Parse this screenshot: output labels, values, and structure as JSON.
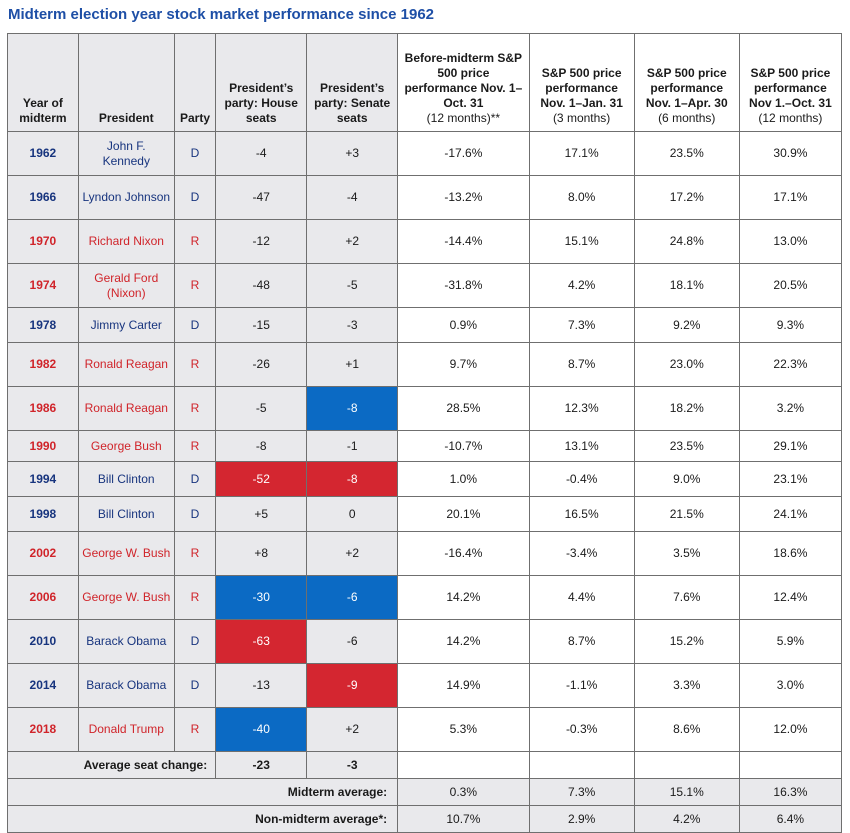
{
  "title": "Midterm election year stock market performance since 1962",
  "headers": {
    "year": "Year of midterm",
    "president": "President",
    "party": "Party",
    "house": "President’s party: House seats",
    "senate": "President’s party: Senate seats",
    "before_main": "Before-midterm S&P 500 price performance Nov. 1–Oct. 31",
    "before_sub": "(12 months)**",
    "m3_main": "S&P 500 price performance Nov. 1–Jan. 31",
    "m3_sub": "(3 months)",
    "m6_main": "S&P 500 price performance Nov. 1–Apr. 30",
    "m6_sub": "(6 months)",
    "m12_main": "S&P 500 price performance Nov 1.–Oct. 31",
    "m12_sub": "(12 months)"
  },
  "rows": [
    {
      "year": "1962",
      "president": "John F. Kennedy",
      "party": "D",
      "house": "-4",
      "senate": "+3",
      "before": "-17.6%",
      "m3": "17.1%",
      "m6": "23.5%",
      "m12": "30.9%"
    },
    {
      "year": "1966",
      "president": "Lyndon Johnson",
      "party": "D",
      "house": "-47",
      "senate": "-4",
      "before": "-13.2%",
      "m3": "8.0%",
      "m6": "17.2%",
      "m12": "17.1%"
    },
    {
      "year": "1970",
      "president": "Richard Nixon",
      "party": "R",
      "house": "-12",
      "senate": "+2",
      "before": "-14.4%",
      "m3": "15.1%",
      "m6": "24.8%",
      "m12": "13.0%"
    },
    {
      "year": "1974",
      "president": "Gerald Ford (Nixon)",
      "party": "R",
      "house": "-48",
      "senate": "-5",
      "before": "-31.8%",
      "m3": "4.2%",
      "m6": "18.1%",
      "m12": "20.5%"
    },
    {
      "year": "1978",
      "president": "Jimmy Carter",
      "party": "D",
      "house": "-15",
      "senate": "-3",
      "before": "0.9%",
      "m3": "7.3%",
      "m6": "9.2%",
      "m12": "9.3%"
    },
    {
      "year": "1982",
      "president": "Ronald Reagan",
      "party": "R",
      "house": "-26",
      "senate": "+1",
      "before": "9.7%",
      "m3": "8.7%",
      "m6": "23.0%",
      "m12": "22.3%"
    },
    {
      "year": "1986",
      "president": "Ronald Reagan",
      "party": "R",
      "house": "-5",
      "senate": "-8",
      "before": "28.5%",
      "m3": "12.3%",
      "m6": "18.2%",
      "m12": "3.2%"
    },
    {
      "year": "1990",
      "president": "George Bush",
      "party": "R",
      "house": "-8",
      "senate": "-1",
      "before": "-10.7%",
      "m3": "13.1%",
      "m6": "23.5%",
      "m12": "29.1%"
    },
    {
      "year": "1994",
      "president": "Bill Clinton",
      "party": "D",
      "house": "-52",
      "senate": "-8",
      "before": "1.0%",
      "m3": "-0.4%",
      "m6": "9.0%",
      "m12": "23.1%"
    },
    {
      "year": "1998",
      "president": "Bill Clinton",
      "party": "D",
      "house": "+5",
      "senate": "0",
      "before": "20.1%",
      "m3": "16.5%",
      "m6": "21.5%",
      "m12": "24.1%"
    },
    {
      "year": "2002",
      "president": "George W. Bush",
      "party": "R",
      "house": "+8",
      "senate": "+2",
      "before": "-16.4%",
      "m3": "-3.4%",
      "m6": "3.5%",
      "m12": "18.6%"
    },
    {
      "year": "2006",
      "president": "George W. Bush",
      "party": "R",
      "house": "-30",
      "senate": "-6",
      "before": "14.2%",
      "m3": "4.4%",
      "m6": "7.6%",
      "m12": "12.4%"
    },
    {
      "year": "2010",
      "president": "Barack Obama",
      "party": "D",
      "house": "-63",
      "senate": "-6",
      "before": "14.2%",
      "m3": "8.7%",
      "m6": "15.2%",
      "m12": "5.9%"
    },
    {
      "year": "2014",
      "president": "Barack Obama",
      "party": "D",
      "house": "-13",
      "senate": "-9",
      "before": "14.9%",
      "m3": "-1.1%",
      "m6": "3.3%",
      "m12": "3.0%"
    },
    {
      "year": "2018",
      "president": "Donald Trump",
      "party": "R",
      "house": "-40",
      "senate": "+2",
      "before": "5.3%",
      "m3": "-0.3%",
      "m6": "8.6%",
      "m12": "12.0%"
    }
  ],
  "highlights": {
    "1986": {
      "senate": "blue"
    },
    "1994": {
      "house": "red",
      "senate": "red"
    },
    "2006": {
      "house": "blue",
      "senate": "blue"
    },
    "2010": {
      "house": "red"
    },
    "2014": {
      "senate": "red"
    },
    "2018": {
      "house": "blue"
    }
  },
  "colors": {
    "democrat": "#17347e",
    "republican": "#d0242a",
    "highlight_blue": "#0b6ac4",
    "highlight_red": "#d42630",
    "title": "#1e4fa6"
  },
  "footer": {
    "avg_seat_label": "Average seat change:",
    "avg_house": "-23",
    "avg_senate": "-3",
    "midterm_label": "Midterm average:",
    "midterm": {
      "before": "0.3%",
      "m3": "7.3%",
      "m6": "15.1%",
      "m12": "16.3%"
    },
    "nonmidterm_label": "Non-midterm average*:",
    "nonmidterm": {
      "before": "10.7%",
      "m3": "2.9%",
      "m6": "4.2%",
      "m12": "6.4%"
    }
  }
}
